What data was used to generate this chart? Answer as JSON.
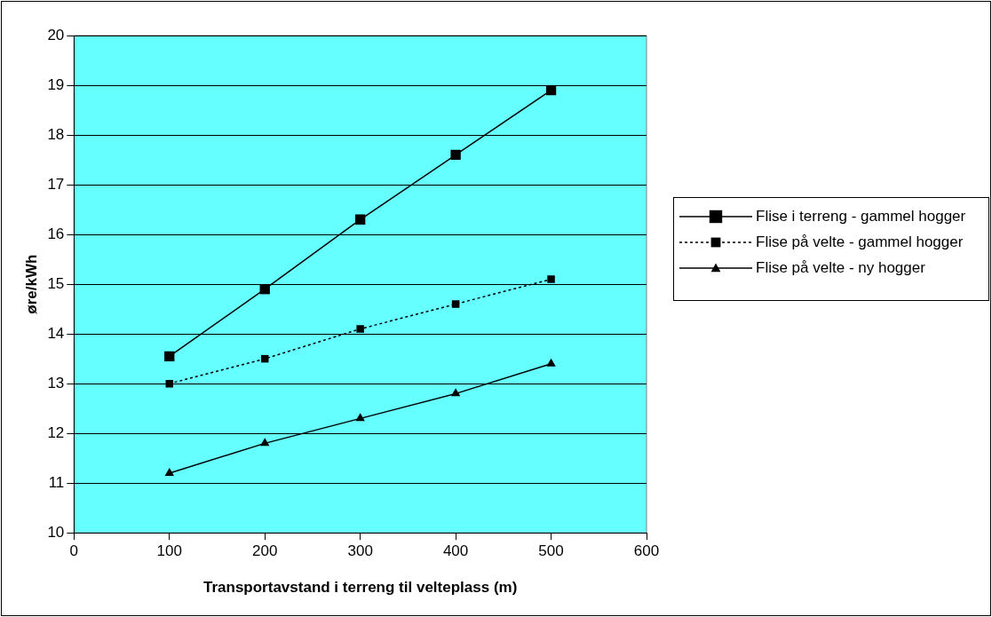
{
  "chart_data": {
    "type": "line",
    "xlabel": "Transportavstand i terreng til velteplass (m)",
    "ylabel": "øre/kWh",
    "x": [
      100,
      200,
      300,
      400,
      500
    ],
    "series": [
      {
        "name": "Flise i terreng - gammel hogger",
        "color": "#000000",
        "values": [
          13.55,
          14.9,
          16.3,
          17.6,
          18.9
        ],
        "marker": "square",
        "line_style": "solid"
      },
      {
        "name": "Flise på velte - gammel hogger",
        "color": "#000000",
        "values": [
          13.0,
          13.5,
          14.1,
          14.6,
          15.1
        ],
        "marker": "square",
        "line_style": "dotted"
      },
      {
        "name": "Flise på velte - ny hogger",
        "color": "#000000",
        "values": [
          11.2,
          11.8,
          12.3,
          12.8,
          13.4
        ],
        "marker": "triangle",
        "line_style": "solid"
      }
    ],
    "xlim": [
      0,
      600
    ],
    "xticks": [
      0,
      100,
      200,
      300,
      400,
      500,
      600
    ],
    "ylim": [
      10,
      20
    ],
    "yticks": [
      10,
      11,
      12,
      13,
      14,
      15,
      16,
      17,
      18,
      19,
      20
    ],
    "grid": "y",
    "legend": "right"
  }
}
